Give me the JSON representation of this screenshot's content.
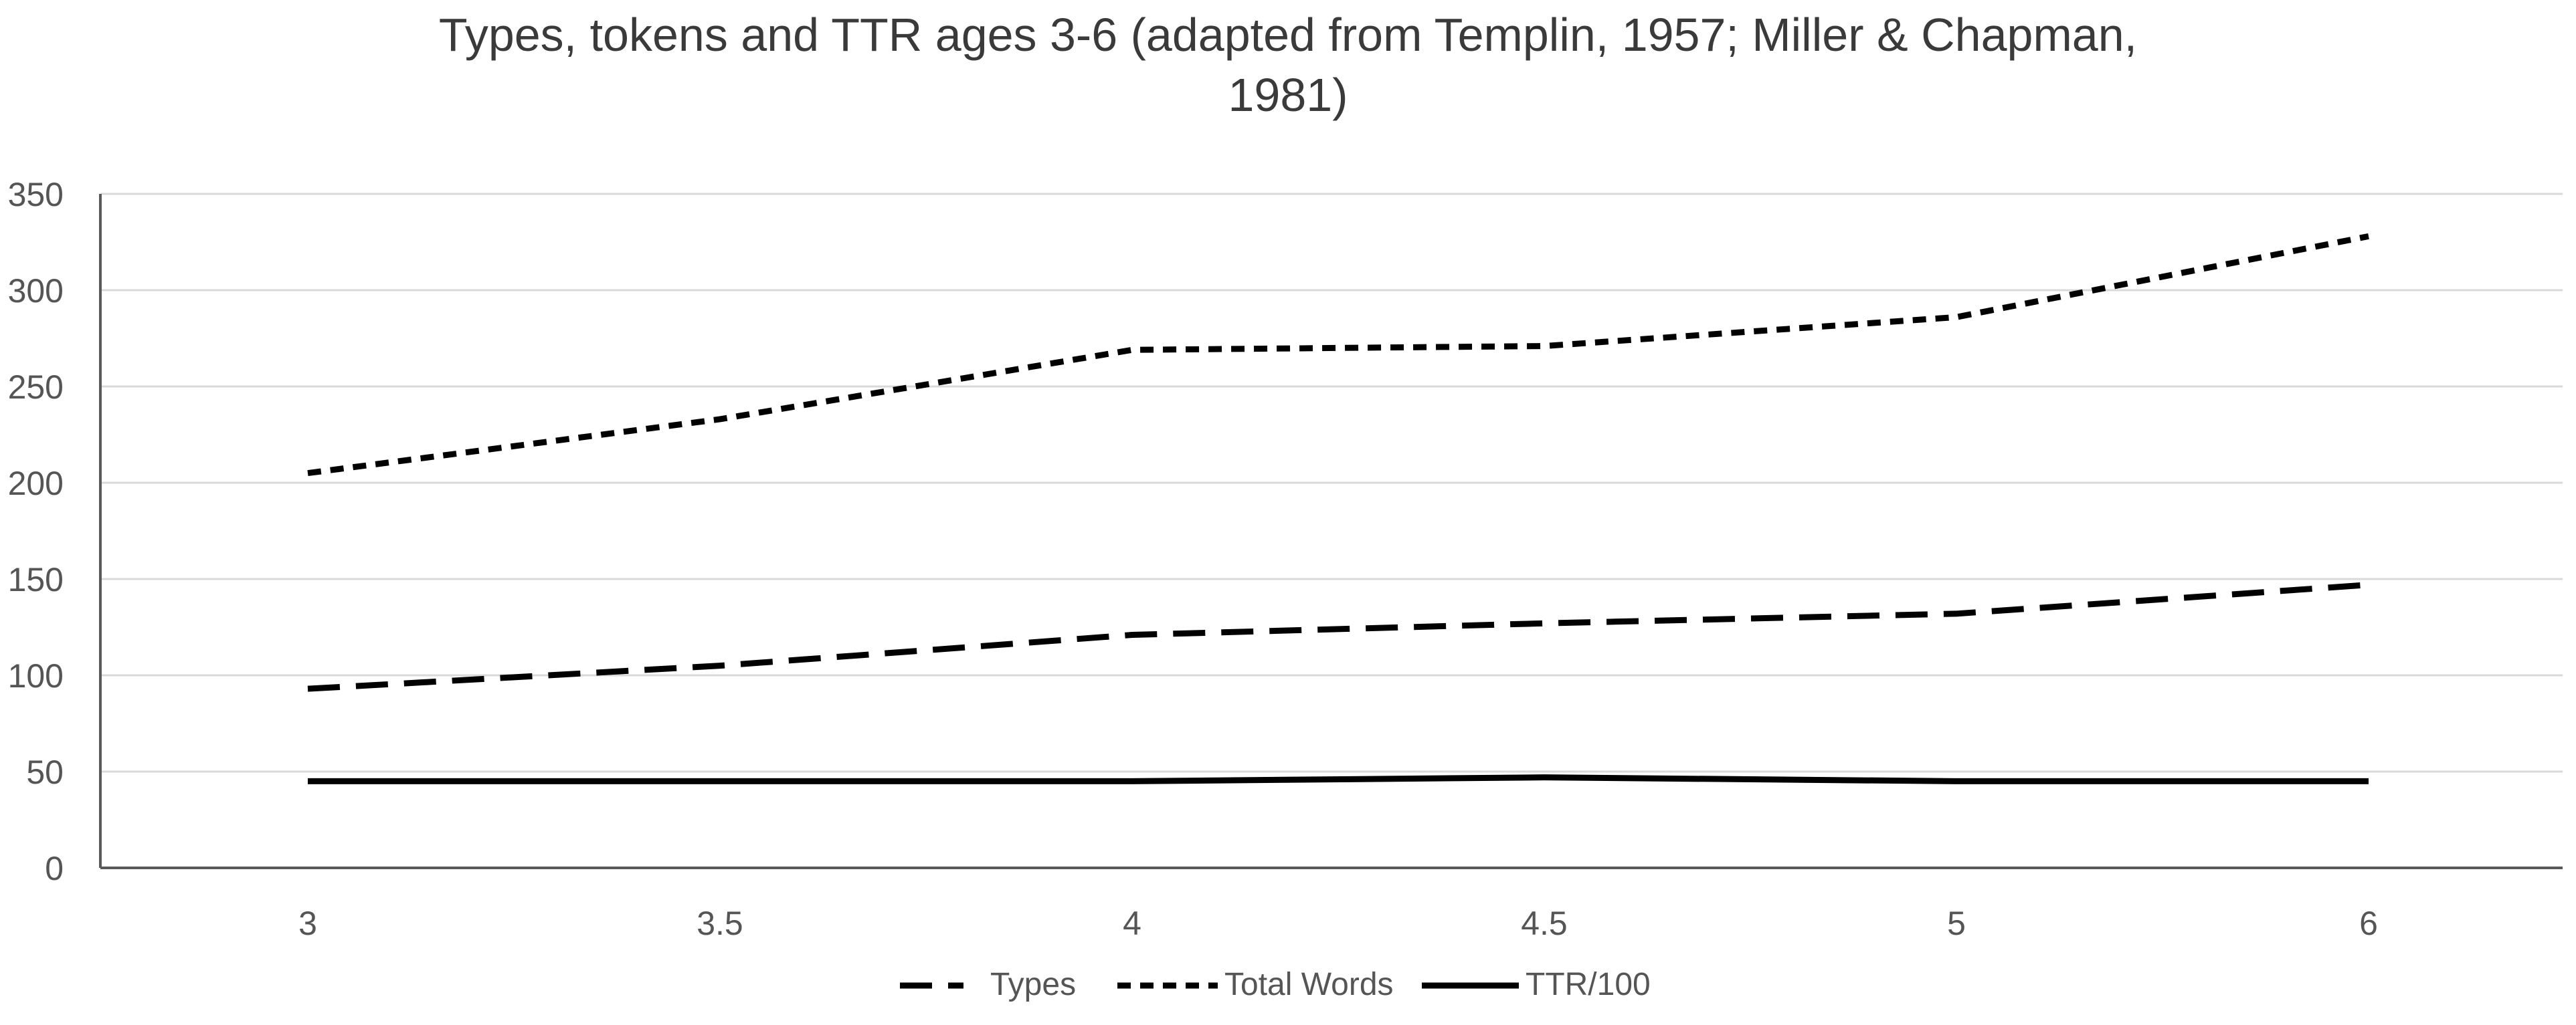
{
  "chart_data": {
    "type": "line",
    "title_line1": "Types, tokens and TTR ages 3-6 (adapted from Templin, 1957; Miller & Chapman,",
    "title_line2": "1981)",
    "categories": [
      "3",
      "3.5",
      "4",
      "4.5",
      "5",
      "6"
    ],
    "series": [
      {
        "name": "Types",
        "values": [
          93,
          105,
          121,
          127,
          132,
          147
        ],
        "dash": "long-dash"
      },
      {
        "name": "Total Words",
        "values": [
          205,
          233,
          269,
          271,
          286,
          328
        ],
        "dash": "short-dash"
      },
      {
        "name": "TTR/100",
        "values": [
          45,
          45,
          45,
          47,
          45,
          45
        ],
        "dash": "solid"
      }
    ],
    "ylim": [
      0,
      350
    ],
    "y_ticks": [
      0,
      50,
      100,
      150,
      200,
      250,
      300,
      350
    ],
    "xlabel": "",
    "ylabel": "",
    "grid": true,
    "legend_position": "bottom",
    "colors": {
      "line": "#000000",
      "grid": "#d9d9d9",
      "axis": "#595959",
      "text": "#555555"
    }
  }
}
